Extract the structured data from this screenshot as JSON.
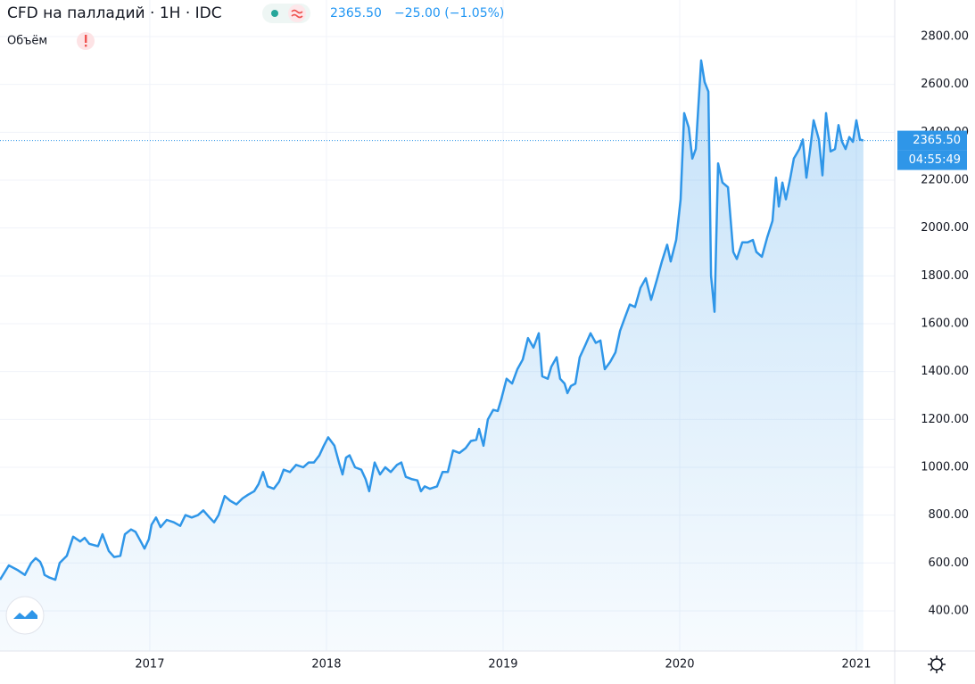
{
  "chart_data": {
    "type": "area",
    "title": "CFD на палладий · 1H · IDC",
    "price": "2365.50",
    "change": "−25.00 (−1.05%)",
    "volume_label": "Объём",
    "timer": "04:55:49",
    "last_price": {
      "value": 2365.5,
      "label": "2365.50"
    },
    "color": "#2f96e8",
    "grid": true,
    "xlim": [
      2016.152,
      2021.217
    ],
    "xticks": [
      2017,
      2018,
      2019,
      2020,
      2021
    ],
    "ylim": [
      232.2,
      2952.8
    ],
    "yticks": [
      {
        "value": 400,
        "label": "400.00"
      },
      {
        "value": 600,
        "label": "600.00"
      },
      {
        "value": 800,
        "label": "800.00"
      },
      {
        "value": 1000,
        "label": "1000.00"
      },
      {
        "value": 1200,
        "label": "1200.00"
      },
      {
        "value": 1400,
        "label": "1400.00"
      },
      {
        "value": 1600,
        "label": "1600.00"
      },
      {
        "value": 1800,
        "label": "1800.00"
      },
      {
        "value": 2000,
        "label": "2000.00"
      },
      {
        "value": 2200,
        "label": "2200.00"
      },
      {
        "value": 2400,
        "label": "2400.00"
      },
      {
        "value": 2600,
        "label": "2600.00"
      },
      {
        "value": 2800,
        "label": "2800.00"
      }
    ],
    "x": [
      2016.152,
      2016.202,
      2016.253,
      2016.293,
      2016.328,
      2016.354,
      2016.379,
      2016.394,
      2016.404,
      2016.429,
      2016.465,
      2016.49,
      2016.53,
      2016.566,
      2016.606,
      2016.631,
      2016.657,
      2016.707,
      2016.732,
      2016.768,
      2016.798,
      2016.833,
      2016.859,
      2016.894,
      2016.919,
      2016.949,
      2016.97,
      2016.995,
      2017.01,
      2017.035,
      2017.061,
      2017.096,
      2017.136,
      2017.172,
      2017.202,
      2017.237,
      2017.273,
      2017.303,
      2017.338,
      2017.364,
      2017.389,
      2017.424,
      2017.455,
      2017.49,
      2017.525,
      2017.556,
      2017.591,
      2017.616,
      2017.641,
      2017.667,
      2017.702,
      2017.732,
      2017.758,
      2017.793,
      2017.828,
      2017.869,
      2017.899,
      2017.929,
      2017.96,
      2017.985,
      2018.01,
      2018.045,
      2018.071,
      2018.091,
      2018.111,
      2018.131,
      2018.162,
      2018.197,
      2018.222,
      2018.242,
      2018.273,
      2018.303,
      2018.333,
      2018.364,
      2018.399,
      2018.424,
      2018.449,
      2018.485,
      2018.515,
      2018.535,
      2018.556,
      2018.586,
      2018.626,
      2018.657,
      2018.687,
      2018.717,
      2018.753,
      2018.788,
      2018.818,
      2018.848,
      2018.864,
      2018.889,
      2018.914,
      2018.944,
      2018.97,
      2018.99,
      2019.02,
      2019.051,
      2019.081,
      2019.111,
      2019.141,
      2019.172,
      2019.202,
      2019.222,
      2019.253,
      2019.273,
      2019.303,
      2019.323,
      2019.348,
      2019.364,
      2019.384,
      2019.409,
      2019.434,
      2019.465,
      2019.495,
      2019.525,
      2019.551,
      2019.576,
      2019.606,
      2019.636,
      2019.662,
      2019.687,
      2019.717,
      2019.747,
      2019.778,
      2019.808,
      2019.838,
      2019.869,
      2019.899,
      2019.929,
      2019.949,
      2019.98,
      2020.005,
      2020.025,
      2020.051,
      2020.071,
      2020.091,
      2020.121,
      2020.141,
      2020.162,
      2020.177,
      2020.197,
      2020.217,
      2020.242,
      2020.273,
      2020.303,
      2020.323,
      2020.354,
      2020.384,
      2020.414,
      2020.434,
      2020.465,
      2020.495,
      2020.525,
      2020.545,
      2020.561,
      2020.581,
      2020.601,
      2020.626,
      2020.646,
      2020.677,
      2020.697,
      2020.717,
      2020.737,
      2020.758,
      2020.788,
      2020.808,
      2020.828,
      2020.854,
      2020.879,
      2020.899,
      2020.919,
      2020.939,
      2020.96,
      2020.98,
      2021.0,
      2021.02,
      2021.04
    ],
    "values": [
      530,
      590,
      570,
      550,
      600,
      620,
      605,
      580,
      550,
      540,
      530,
      600,
      630,
      710,
      690,
      705,
      680,
      670,
      720,
      650,
      625,
      630,
      720,
      740,
      730,
      690,
      660,
      700,
      760,
      790,
      750,
      780,
      770,
      755,
      800,
      790,
      800,
      820,
      790,
      770,
      800,
      880,
      860,
      845,
      870,
      885,
      900,
      930,
      980,
      920,
      910,
      940,
      990,
      980,
      1010,
      1000,
      1020,
      1020,
      1050,
      1090,
      1125,
      1090,
      1020,
      970,
      1040,
      1050,
      1000,
      990,
      950,
      900,
      1020,
      970,
      1000,
      980,
      1010,
      1020,
      960,
      950,
      945,
      900,
      920,
      910,
      920,
      980,
      980,
      1070,
      1060,
      1080,
      1110,
      1115,
      1160,
      1090,
      1200,
      1240,
      1235,
      1285,
      1370,
      1350,
      1410,
      1450,
      1540,
      1500,
      1560,
      1380,
      1370,
      1420,
      1460,
      1370,
      1350,
      1310,
      1340,
      1350,
      1460,
      1510,
      1560,
      1520,
      1530,
      1410,
      1440,
      1480,
      1570,
      1620,
      1680,
      1670,
      1750,
      1790,
      1700,
      1780,
      1860,
      1930,
      1860,
      1950,
      2120,
      2480,
      2420,
      2290,
      2330,
      2700,
      2610,
      2570,
      1800,
      1650,
      2270,
      2190,
      2170,
      1900,
      1870,
      1940,
      1940,
      1950,
      1900,
      1880,
      1960,
      2030,
      2210,
      2090,
      2190,
      2120,
      2210,
      2290,
      2330,
      2370,
      2210,
      2320,
      2450,
      2370,
      2220,
      2480,
      2320,
      2330,
      2430,
      2360,
      2330,
      2380,
      2360,
      2450,
      2370,
      2365.5
    ]
  }
}
